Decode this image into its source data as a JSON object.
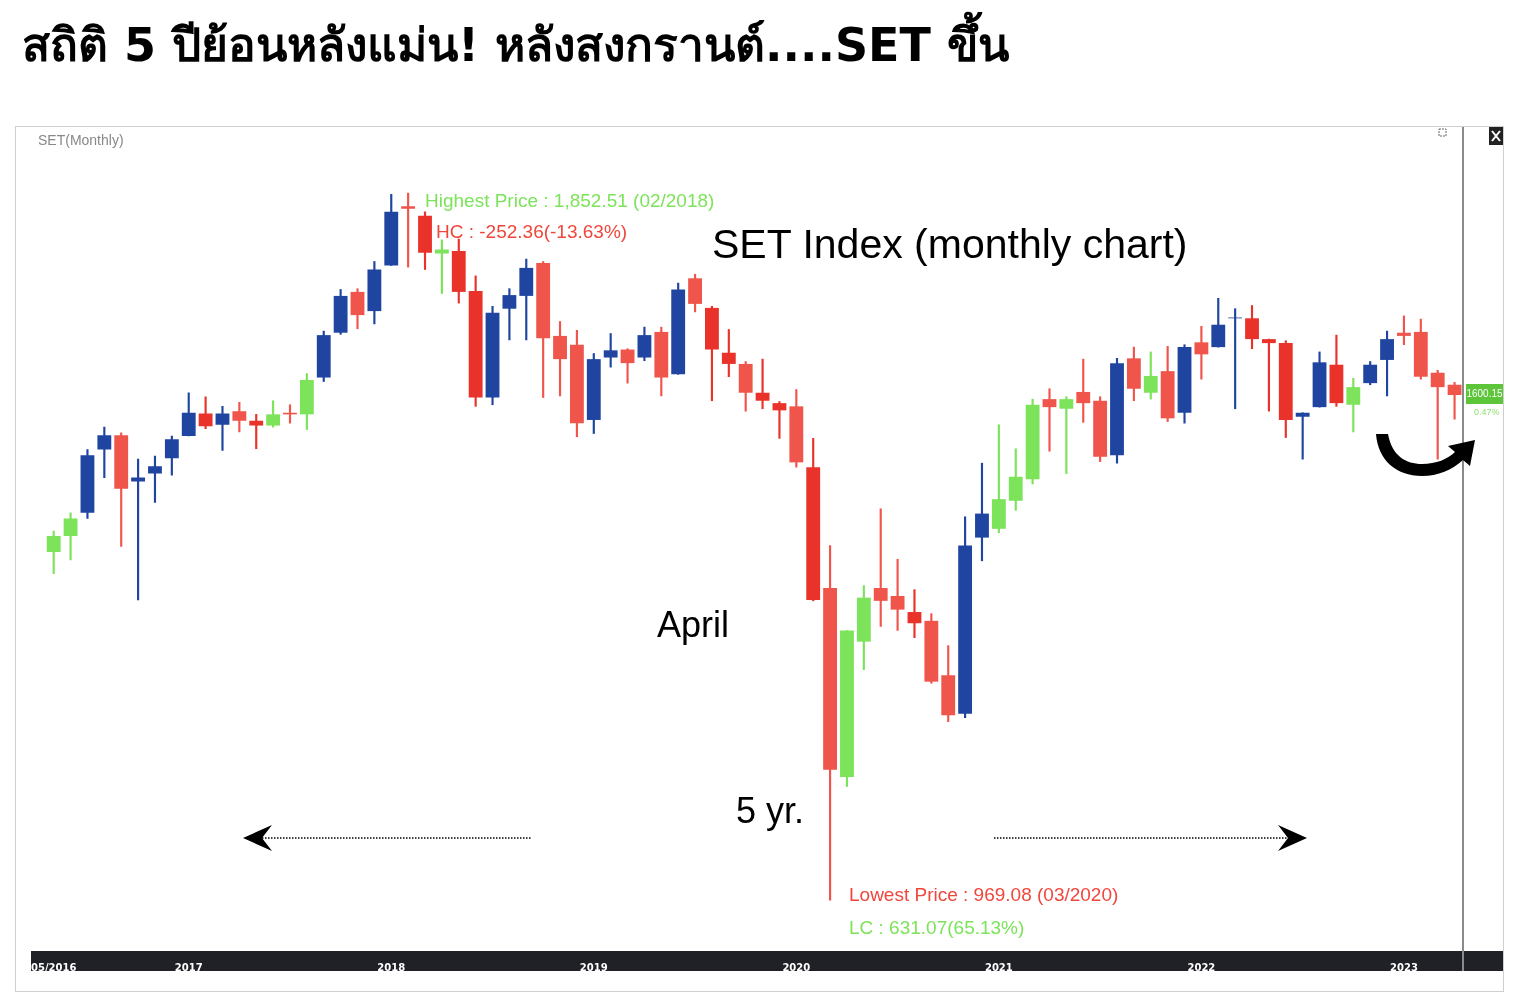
{
  "chart_data": {
    "type": "candlestick",
    "title": "สถิติ 5 ปีย้อนหลังแม่น! หลังสงกรานต์....SET ขึ้น",
    "tick_labels": "x",
    "categories": [
      "05/2016",
      null,
      null,
      null,
      null,
      null,
      null,
      null,
      "2017",
      null,
      null,
      null,
      null,
      null,
      null,
      null,
      null,
      null,
      null,
      null,
      "2018",
      null,
      null,
      null,
      null,
      null,
      null,
      null,
      null,
      null,
      null,
      null,
      "2019",
      null,
      null,
      null,
      null,
      null,
      null,
      null,
      null,
      null,
      null,
      null,
      "2020",
      null,
      null,
      null,
      null,
      null,
      null,
      null,
      null,
      null,
      null,
      null,
      "2021",
      null,
      null,
      null,
      null,
      null,
      null,
      null,
      null,
      null,
      null,
      null,
      "2022",
      null,
      null,
      null,
      null,
      null,
      null,
      null,
      null,
      null,
      null,
      null,
      "2023",
      null,
      null,
      null
    ],
    "ohlc": [
      [
        1404,
        1430,
        1377,
        1424
      ],
      [
        1424,
        1453,
        1394,
        1446
      ],
      [
        1453,
        1532,
        1446,
        1525
      ],
      [
        1532,
        1560,
        1497,
        1550
      ],
      [
        1550,
        1553,
        1411,
        1483
      ],
      [
        1492,
        1520,
        1344,
        1497
      ],
      [
        1502,
        1524,
        1466,
        1511
      ],
      [
        1521,
        1549,
        1500,
        1545
      ],
      [
        1549,
        1603,
        1549,
        1578
      ],
      [
        1577,
        1598,
        1558,
        1561
      ],
      [
        1563,
        1586,
        1531,
        1577
      ],
      [
        1580,
        1591,
        1554,
        1568
      ],
      [
        1568,
        1576,
        1533,
        1562
      ],
      [
        1562,
        1593,
        1560,
        1576
      ],
      [
        1578,
        1588,
        1565,
        1576
      ],
      [
        1576,
        1627,
        1557,
        1619
      ],
      [
        1622,
        1680,
        1617,
        1675
      ],
      [
        1678,
        1732,
        1676,
        1724
      ],
      [
        1729,
        1733,
        1683,
        1700
      ],
      [
        1705,
        1767,
        1689,
        1757
      ],
      [
        1762,
        1851,
        1762,
        1829
      ],
      [
        1836,
        1852.51,
        1760,
        1833
      ],
      [
        1824,
        1829,
        1757,
        1778
      ],
      [
        1777,
        1794,
        1727,
        1782
      ],
      [
        1780,
        1795,
        1715,
        1729
      ],
      [
        1730,
        1749,
        1586,
        1597
      ],
      [
        1597,
        1711,
        1588,
        1703
      ],
      [
        1708,
        1733,
        1669,
        1725
      ],
      [
        1724,
        1770,
        1669,
        1759
      ],
      [
        1765,
        1767,
        1597,
        1671
      ],
      [
        1674,
        1692,
        1599,
        1645
      ],
      [
        1663,
        1681,
        1548,
        1565
      ],
      [
        1569,
        1652,
        1552,
        1645
      ],
      [
        1647,
        1677,
        1635,
        1656
      ],
      [
        1657,
        1658,
        1615,
        1640
      ],
      [
        1647,
        1685,
        1643,
        1675
      ],
      [
        1679,
        1685,
        1599,
        1622
      ],
      [
        1626,
        1740,
        1626,
        1732
      ],
      [
        1746,
        1751,
        1704,
        1714
      ],
      [
        1709,
        1711,
        1593,
        1657
      ],
      [
        1653,
        1682,
        1623,
        1639
      ],
      [
        1639,
        1642,
        1580,
        1603
      ],
      [
        1603,
        1645,
        1583,
        1593
      ],
      [
        1590,
        1592,
        1546,
        1581
      ],
      [
        1586,
        1607,
        1510,
        1516
      ],
      [
        1510,
        1546,
        1343,
        1344
      ],
      [
        1359,
        1412,
        969.08,
        1132
      ],
      [
        1123,
        1306,
        1111,
        1306
      ],
      [
        1292,
        1362,
        1257,
        1347
      ],
      [
        1359,
        1458,
        1311,
        1343
      ],
      [
        1349,
        1395,
        1306,
        1332
      ],
      [
        1329,
        1357,
        1297,
        1315
      ],
      [
        1318,
        1327,
        1240,
        1242
      ],
      [
        1250,
        1287,
        1192,
        1200
      ],
      [
        1202,
        1448,
        1197,
        1412
      ],
      [
        1422,
        1515,
        1393,
        1452
      ],
      [
        1433,
        1563,
        1428,
        1470
      ],
      [
        1468,
        1533,
        1456,
        1498
      ],
      [
        1495,
        1595,
        1489,
        1588
      ],
      [
        1595,
        1608,
        1530,
        1585
      ],
      [
        1583,
        1598,
        1502,
        1595
      ],
      [
        1604,
        1645,
        1566,
        1590
      ],
      [
        1593,
        1598,
        1517,
        1523
      ],
      [
        1525,
        1646,
        1515,
        1640
      ],
      [
        1646,
        1660,
        1593,
        1608
      ],
      [
        1603,
        1654,
        1595,
        1624
      ],
      [
        1630,
        1661,
        1567,
        1571
      ],
      [
        1578,
        1663,
        1565,
        1660
      ],
      [
        1666,
        1686,
        1620,
        1651
      ],
      [
        1660,
        1721,
        1660,
        1688
      ],
      [
        1696,
        1708,
        1583,
        1697
      ],
      [
        1696,
        1712,
        1658,
        1670
      ],
      [
        1670,
        1670,
        1580,
        1665
      ],
      [
        1665,
        1668,
        1547,
        1569
      ],
      [
        1573,
        1578,
        1520,
        1578
      ],
      [
        1585,
        1654,
        1585,
        1641
      ],
      [
        1638,
        1675,
        1586,
        1590
      ],
      [
        1588,
        1621,
        1554,
        1610
      ],
      [
        1615,
        1642,
        1613,
        1638
      ],
      [
        1644,
        1680,
        1599,
        1670
      ],
      [
        1678,
        1699,
        1663,
        1674
      ],
      [
        1679,
        1695,
        1620,
        1623
      ],
      [
        1628,
        1631,
        1520,
        1610
      ],
      [
        1613,
        1616,
        1570,
        1600.15
      ]
    ],
    "colors": [
      "#7ce35a",
      "#7ce35a",
      "#1f45a0",
      "#1f45a0",
      "#f0554c",
      "#1f45a0",
      "#1f45a0",
      "#1f45a0",
      "#1f45a0",
      "#e8322a",
      "#1f45a0",
      "#f0554c",
      "#e8322a",
      "#7ce35a",
      "#f0554c",
      "#7ce35a",
      "#1f45a0",
      "#1f45a0",
      "#f0554c",
      "#1f45a0",
      "#1f45a0",
      "#f0554c",
      "#e8322a",
      "#7ce35a",
      "#e8322a",
      "#e8322a",
      "#1f45a0",
      "#1f45a0",
      "#1f45a0",
      "#f0554c",
      "#f0554c",
      "#f0554c",
      "#1f45a0",
      "#1f45a0",
      "#f0554c",
      "#1f45a0",
      "#f0554c",
      "#1f45a0",
      "#f0554c",
      "#e8322a",
      "#e8322a",
      "#f0554c",
      "#e8322a",
      "#e8322a",
      "#f0554c",
      "#e8322a",
      "#f0554c",
      "#7ce35a",
      "#7ce35a",
      "#f0554c",
      "#f0554c",
      "#e8322a",
      "#f0554c",
      "#f0554c",
      "#1f45a0",
      "#1f45a0",
      "#7ce35a",
      "#7ce35a",
      "#7ce35a",
      "#f0554c",
      "#7ce35a",
      "#f0554c",
      "#f0554c",
      "#1f45a0",
      "#f0554c",
      "#7ce35a",
      "#f0554c",
      "#1f45a0",
      "#f0554c",
      "#1f45a0",
      "#1f45a0",
      "#e8322a",
      "#e8322a",
      "#e8322a",
      "#1f45a0",
      "#1f45a0",
      "#e8322a",
      "#7ce35a",
      "#1f45a0",
      "#1f45a0",
      "#f0554c",
      "#f0554c",
      "#f0554c",
      "#f0554c"
    ],
    "annotations": [
      "Highest Price : 1,852.51 (02/2018)",
      "HC : -252.36(-13.63%)",
      "SET Index (monthly chart)",
      "April",
      "5 yr.",
      "Lowest Price : 969.08 (03/2020)",
      "LC : 631.07(65.13%)",
      "1600.15",
      "0.47%",
      "SET(Monthly)"
    ]
  }
}
